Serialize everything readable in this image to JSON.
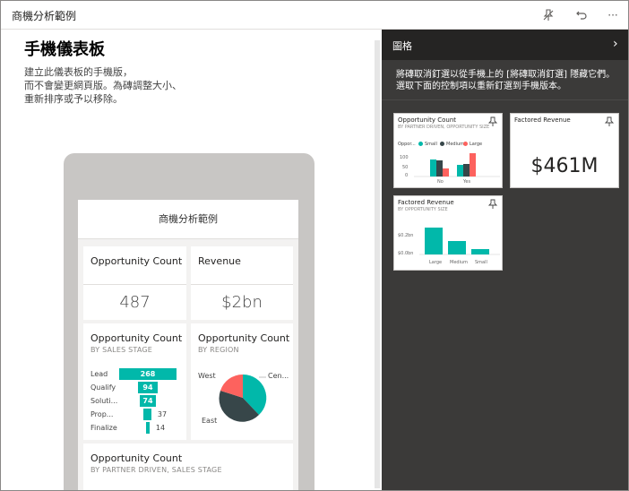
{
  "window": {
    "title": "商機分析範例"
  },
  "toolbar": {
    "icons": [
      "unpin-icon",
      "undo-icon",
      "more-options-icon"
    ],
    "more_label": "···"
  },
  "left": {
    "heading": "手機儀表板",
    "description_lines": [
      "建立此儀表板的手機版，",
      "而不會變更網頁版。為磚調整大小、",
      "重新排序或予以移除。"
    ]
  },
  "phone": {
    "header": "商機分析範例",
    "tiles": {
      "opportunity_count": {
        "title": "Opportunity Count",
        "value": "487"
      },
      "revenue": {
        "title": "Revenue",
        "value": "$2bn"
      },
      "by_sales_stage": {
        "title": "Opportunity Count",
        "subtitle": "BY SALES STAGE",
        "rows": [
          {
            "label": "Lead",
            "value": "268"
          },
          {
            "label": "Qualify",
            "value": "94"
          },
          {
            "label": "Soluti...",
            "value": "74"
          },
          {
            "label": "Prop...",
            "value": "37"
          },
          {
            "label": "Finalize",
            "value": "14"
          }
        ]
      },
      "by_region": {
        "title": "Opportunity Count",
        "subtitle": "BY REGION",
        "labels": {
          "west": "West",
          "central": "Cen...",
          "east": "East"
        }
      },
      "by_partner": {
        "title": "Opportunity Count",
        "subtitle": "BY PARTNER DRIVEN, SALES STAGE"
      }
    }
  },
  "panel": {
    "title": "圖格",
    "description_lines": [
      "將磚取消釘選以從手機上的 [將磚取消釘選] 隱藏它們。",
      "選取下面的控制項以重新釘選到手機版本。"
    ],
    "cards": {
      "opp_partner": {
        "title": "Opportunity Count",
        "subtitle": "BY PARTNER DRIVEN, OPPORTUNITY SIZE",
        "legend_prefix": "Oppor...",
        "legend": [
          "Small",
          "Medium",
          "Large"
        ],
        "y_ticks": [
          "100",
          "50",
          "0"
        ],
        "x_cats": [
          "No",
          "Yes"
        ]
      },
      "factored_revenue": {
        "title": "Factored Revenue",
        "value": "$461M"
      },
      "factored_by_size": {
        "title": "Factored Revenue",
        "subtitle": "BY OPPORTUNITY SIZE",
        "y_ticks": [
          "$0.2bn",
          "$0.0bn"
        ],
        "x_cats": [
          "Large",
          "Medium",
          "Small"
        ]
      }
    }
  },
  "colors": {
    "teal": "#01b8aa",
    "dark": "#374649",
    "red": "#fd625e",
    "panel_bg": "#3b3a39",
    "panel_header": "#252423"
  }
}
